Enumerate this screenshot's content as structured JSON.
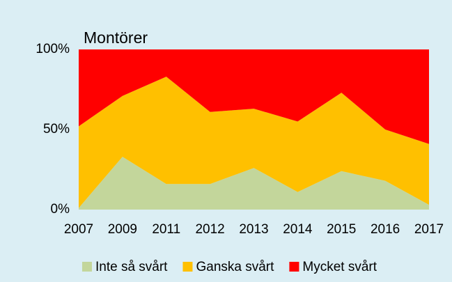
{
  "chart_data": {
    "type": "stacked_area",
    "title": "Montörer",
    "categories": [
      "2007",
      "2009",
      "2011",
      "2012",
      "2013",
      "2014",
      "2015",
      "2016",
      "2017"
    ],
    "series": [
      {
        "name": "Inte så svårt",
        "color": "#c3d69b",
        "values": [
          1,
          33,
          16,
          16,
          26,
          11,
          24,
          18,
          3
        ]
      },
      {
        "name": "Ganska svårt",
        "color": "#ffc000",
        "values": [
          51,
          38,
          67,
          45,
          37,
          44,
          49,
          32,
          38
        ]
      },
      {
        "name": "Mycket svårt",
        "color": "#ff0000",
        "values": [
          48,
          29,
          17,
          39,
          37,
          45,
          27,
          50,
          59
        ]
      }
    ],
    "ylim": [
      0,
      100
    ],
    "yticks": [
      {
        "value": 0,
        "label": "0%"
      },
      {
        "value": 50,
        "label": "50%"
      },
      {
        "value": 100,
        "label": "100%"
      }
    ],
    "legend": "bottom"
  }
}
